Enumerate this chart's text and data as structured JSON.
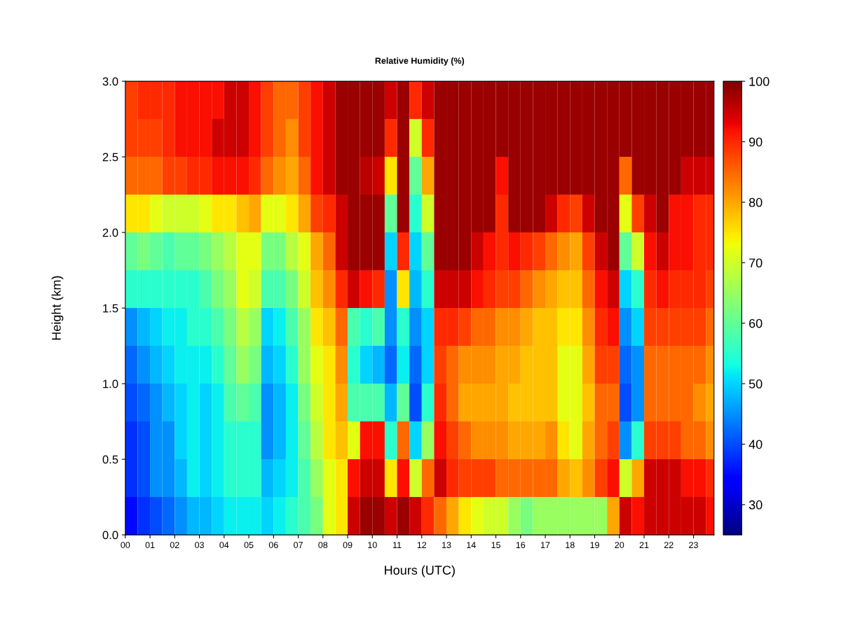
{
  "chart_data": {
    "type": "heatmap",
    "title": "Relative Humidity (%)",
    "xlabel": "Hours (UTC)",
    "ylabel": "Height (km)",
    "x": [
      0.25,
      0.75,
      1.25,
      1.75,
      2.25,
      2.75,
      3.25,
      3.75,
      4.25,
      4.75,
      5.25,
      5.75,
      6.25,
      6.75,
      7.25,
      7.75,
      8.25,
      8.75,
      9.25,
      9.75,
      10.25,
      10.75,
      11.25,
      11.75,
      12.25,
      12.75,
      13.25,
      13.75,
      14.25,
      14.75,
      15.25,
      15.75,
      16.25,
      16.75,
      17.25,
      17.75,
      18.25,
      18.75,
      19.25,
      19.75,
      20.25,
      20.75,
      21.25,
      21.75,
      22.25,
      22.75,
      23.25,
      23.75
    ],
    "xlim": [
      0,
      23.83
    ],
    "xticks": [
      {
        "value": 0,
        "label": "00"
      },
      {
        "value": 1,
        "label": "01"
      },
      {
        "value": 2,
        "label": "02"
      },
      {
        "value": 3,
        "label": "03"
      },
      {
        "value": 4,
        "label": "04"
      },
      {
        "value": 5,
        "label": "05"
      },
      {
        "value": 6,
        "label": "06"
      },
      {
        "value": 7,
        "label": "07"
      },
      {
        "value": 8,
        "label": "08"
      },
      {
        "value": 9,
        "label": "09"
      },
      {
        "value": 10,
        "label": "10"
      },
      {
        "value": 11,
        "label": "11"
      },
      {
        "value": 12,
        "label": "12"
      },
      {
        "value": 13,
        "label": "13"
      },
      {
        "value": 14,
        "label": "14"
      },
      {
        "value": 15,
        "label": "15"
      },
      {
        "value": 16,
        "label": "16"
      },
      {
        "value": 17,
        "label": "17"
      },
      {
        "value": 18,
        "label": "18"
      },
      {
        "value": 19,
        "label": "19"
      },
      {
        "value": 20,
        "label": "20"
      },
      {
        "value": 21,
        "label": "21"
      },
      {
        "value": 22,
        "label": "22"
      },
      {
        "value": 23,
        "label": "23"
      }
    ],
    "ylim": [
      0,
      3.0
    ],
    "yticks": [
      {
        "value": 0,
        "label": "0.0"
      },
      {
        "value": 0.5,
        "label": "0.5"
      },
      {
        "value": 1.0,
        "label": "1.0"
      },
      {
        "value": 1.5,
        "label": "1.5"
      },
      {
        "value": 2.0,
        "label": "2.0"
      },
      {
        "value": 2.5,
        "label": "2.5"
      },
      {
        "value": 3.0,
        "label": "3.0"
      }
    ],
    "clim": [
      25,
      100
    ],
    "cticks": [
      30,
      40,
      50,
      60,
      70,
      80,
      90,
      100
    ],
    "cells": [
      [
        88,
        90,
        90,
        90,
        92,
        92,
        92,
        92,
        95,
        95,
        92,
        88,
        85,
        85,
        88,
        92,
        95,
        98,
        98,
        98,
        98,
        95,
        98,
        90,
        95,
        98,
        98,
        98,
        98,
        98,
        98,
        98,
        98,
        98,
        98,
        98,
        98,
        98,
        98,
        98,
        98,
        98,
        98,
        98,
        98,
        98,
        98,
        98
      ],
      [
        88,
        88,
        88,
        90,
        92,
        92,
        92,
        95,
        95,
        95,
        92,
        88,
        85,
        82,
        88,
        92,
        95,
        98,
        98,
        98,
        98,
        90,
        98,
        70,
        90,
        98,
        98,
        98,
        98,
        98,
        98,
        98,
        98,
        98,
        98,
        98,
        98,
        98,
        98,
        98,
        98,
        98,
        98,
        98,
        98,
        98,
        98,
        98
      ],
      [
        85,
        85,
        85,
        88,
        88,
        90,
        90,
        92,
        92,
        92,
        90,
        85,
        82,
        80,
        85,
        92,
        95,
        98,
        98,
        96,
        95,
        75,
        98,
        60,
        80,
        98,
        98,
        98,
        98,
        98,
        92,
        98,
        98,
        98,
        98,
        98,
        98,
        98,
        98,
        98,
        85,
        98,
        98,
        98,
        98,
        95,
        95,
        95
      ],
      [
        75,
        75,
        72,
        70,
        70,
        70,
        72,
        75,
        75,
        78,
        80,
        72,
        72,
        75,
        80,
        88,
        90,
        95,
        98,
        98,
        98,
        60,
        98,
        55,
        70,
        98,
        98,
        98,
        98,
        98,
        90,
        98,
        98,
        98,
        95,
        90,
        88,
        95,
        98,
        98,
        72,
        88,
        95,
        98,
        92,
        92,
        90,
        90
      ],
      [
        60,
        62,
        60,
        58,
        60,
        60,
        62,
        65,
        68,
        72,
        72,
        62,
        62,
        68,
        72,
        80,
        85,
        95,
        98,
        98,
        98,
        50,
        90,
        50,
        60,
        98,
        98,
        98,
        95,
        92,
        90,
        92,
        90,
        88,
        85,
        82,
        80,
        88,
        95,
        98,
        60,
        70,
        92,
        95,
        92,
        92,
        90,
        90
      ],
      [
        55,
        55,
        55,
        55,
        55,
        55,
        58,
        62,
        65,
        72,
        70,
        58,
        58,
        62,
        70,
        78,
        82,
        90,
        95,
        92,
        90,
        45,
        75,
        48,
        55,
        95,
        95,
        95,
        92,
        90,
        88,
        88,
        85,
        82,
        80,
        78,
        78,
        85,
        92,
        95,
        50,
        55,
        90,
        92,
        90,
        90,
        90,
        88
      ],
      [
        45,
        48,
        50,
        52,
        52,
        55,
        55,
        58,
        62,
        68,
        65,
        50,
        52,
        58,
        65,
        75,
        78,
        85,
        58,
        55,
        58,
        45,
        55,
        45,
        50,
        90,
        90,
        88,
        85,
        85,
        82,
        82,
        80,
        78,
        78,
        75,
        75,
        82,
        90,
        92,
        45,
        50,
        88,
        88,
        88,
        88,
        88,
        85
      ],
      [
        42,
        45,
        48,
        50,
        52,
        52,
        52,
        55,
        60,
        65,
        62,
        48,
        50,
        55,
        65,
        72,
        75,
        82,
        55,
        50,
        48,
        42,
        52,
        42,
        50,
        88,
        85,
        82,
        82,
        82,
        80,
        80,
        78,
        78,
        78,
        72,
        72,
        80,
        88,
        88,
        42,
        45,
        85,
        85,
        85,
        85,
        85,
        82
      ],
      [
        40,
        42,
        45,
        48,
        50,
        52,
        50,
        52,
        58,
        60,
        58,
        45,
        48,
        52,
        62,
        70,
        75,
        80,
        58,
        58,
        58,
        48,
        60,
        40,
        55,
        90,
        85,
        80,
        80,
        80,
        80,
        78,
        78,
        78,
        78,
        72,
        72,
        78,
        85,
        85,
        40,
        45,
        85,
        85,
        85,
        85,
        82,
        80
      ],
      [
        38,
        40,
        45,
        45,
        50,
        52,
        50,
        52,
        55,
        55,
        55,
        45,
        48,
        52,
        60,
        68,
        75,
        78,
        72,
        92,
        92,
        55,
        85,
        50,
        65,
        92,
        88,
        85,
        82,
        82,
        82,
        80,
        80,
        80,
        82,
        75,
        72,
        80,
        85,
        88,
        45,
        55,
        88,
        88,
        88,
        85,
        85,
        82
      ],
      [
        38,
        40,
        45,
        45,
        48,
        52,
        50,
        52,
        55,
        55,
        55,
        48,
        50,
        52,
        58,
        65,
        72,
        75,
        92,
        95,
        95,
        75,
        92,
        70,
        85,
        95,
        90,
        88,
        88,
        88,
        85,
        85,
        85,
        85,
        85,
        80,
        78,
        82,
        88,
        92,
        70,
        80,
        95,
        95,
        95,
        92,
        92,
        90
      ],
      [
        35,
        38,
        40,
        42,
        45,
        48,
        48,
        50,
        52,
        52,
        52,
        50,
        52,
        55,
        58,
        62,
        72,
        75,
        95,
        98,
        98,
        95,
        98,
        95,
        90,
        85,
        80,
        75,
        72,
        70,
        70,
        65,
        62,
        65,
        65,
        65,
        65,
        65,
        65,
        80,
        95,
        92,
        95,
        95,
        95,
        95,
        95,
        92
      ]
    ]
  }
}
